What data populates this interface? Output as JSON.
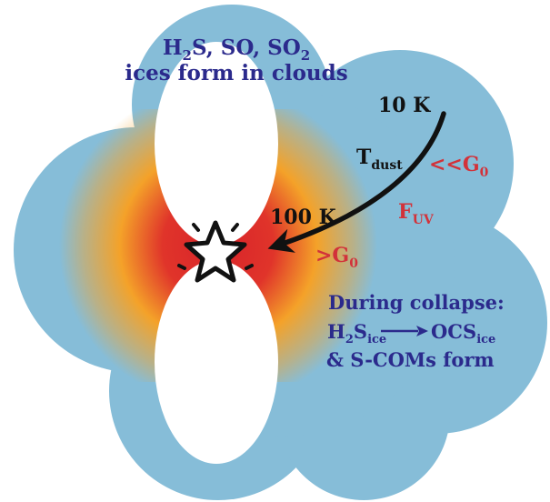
{
  "colors": {
    "cloud": "#86bdd8",
    "cavity": "#ffffff",
    "heat_inner": "#d8232a",
    "heat_outer": "#f4a229",
    "text_blue": "#2b2a8c",
    "text_black": "#111111",
    "text_red": "#d2323a"
  },
  "labels": {
    "top_line1": {
      "pre": "H",
      "sub1": "2",
      "mid": "S, SO, SO",
      "sub2": "2"
    },
    "top_line2": "ices form in clouds",
    "temp_cold": "10 K",
    "temp_warm": "100 K",
    "tdust": {
      "main": "T",
      "sub": "dust"
    },
    "fuv": {
      "main": "F",
      "sub": "UV"
    },
    "g_low": {
      "main": "<<G",
      "sub": "0"
    },
    "g_high": {
      "main": ">G",
      "sub": "0"
    },
    "collapse_title": "During collapse:",
    "reaction": {
      "reactant_main": "H",
      "reactant_sub1": "2",
      "reactant_mid": "S",
      "reactant_sub2": "ice",
      "product_main": "OCS",
      "product_sub": "ice"
    },
    "collapse_line3": "& S-COMs form"
  },
  "icons": {
    "protostar": "star-icon",
    "arrow": "curved-arrow-icon"
  }
}
